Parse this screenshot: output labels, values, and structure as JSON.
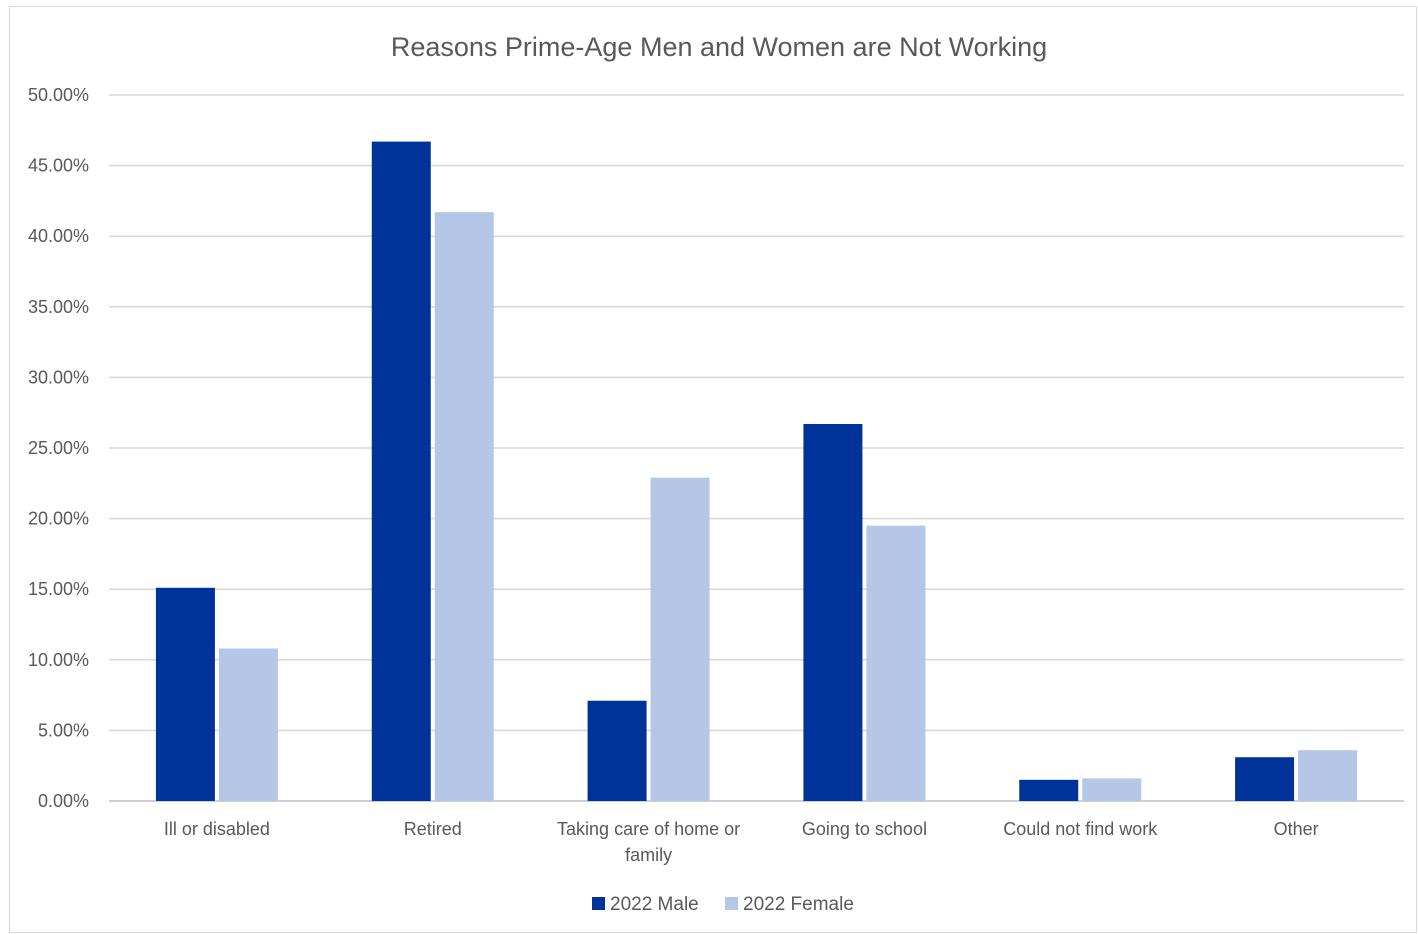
{
  "chart_data": {
    "type": "bar",
    "title": "Reasons Prime-Age Men and Women are Not Working",
    "xlabel": "",
    "ylabel": "",
    "ylim": [
      0,
      0.5
    ],
    "ytick_step": 0.05,
    "ytick_labels": [
      "0.00%",
      "5.00%",
      "10.00%",
      "15.00%",
      "20.00%",
      "25.00%",
      "30.00%",
      "35.00%",
      "40.00%",
      "45.00%",
      "50.00%"
    ],
    "grid": true,
    "legend_position": "bottom",
    "categories": [
      [
        "Ill or disabled"
      ],
      [
        "Retired"
      ],
      [
        "Taking care of home or",
        "family"
      ],
      [
        "Going to school"
      ],
      [
        "Could not find work"
      ],
      [
        "Other"
      ]
    ],
    "series": [
      {
        "name": "2022 Male",
        "color": "#003399",
        "values": [
          0.151,
          0.467,
          0.071,
          0.267,
          0.015,
          0.031
        ]
      },
      {
        "name": "2022 Female",
        "color": "#b4c7e7",
        "values": [
          0.108,
          0.417,
          0.229,
          0.195,
          0.016,
          0.036
        ]
      }
    ]
  }
}
